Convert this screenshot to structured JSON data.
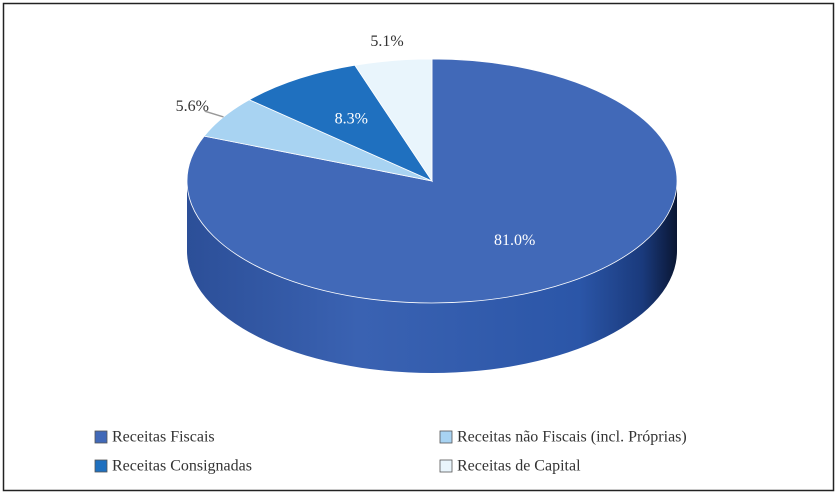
{
  "chart_data": {
    "type": "pie",
    "style": "3d",
    "categories": [
      "Receitas Fiscais",
      "Receitas não Fiscais (incl. Próprias)",
      "Receitas Consignadas",
      "Receitas de Capital"
    ],
    "values": [
      81.0,
      5.6,
      8.3,
      5.1
    ],
    "value_labels": [
      "81.0%",
      "5.6%",
      "8.3%",
      "5.1%"
    ],
    "colors": [
      "#4169b8",
      "#a8d3f2",
      "#1f70bf",
      "#e9f5fc"
    ],
    "legend": "bottom"
  }
}
